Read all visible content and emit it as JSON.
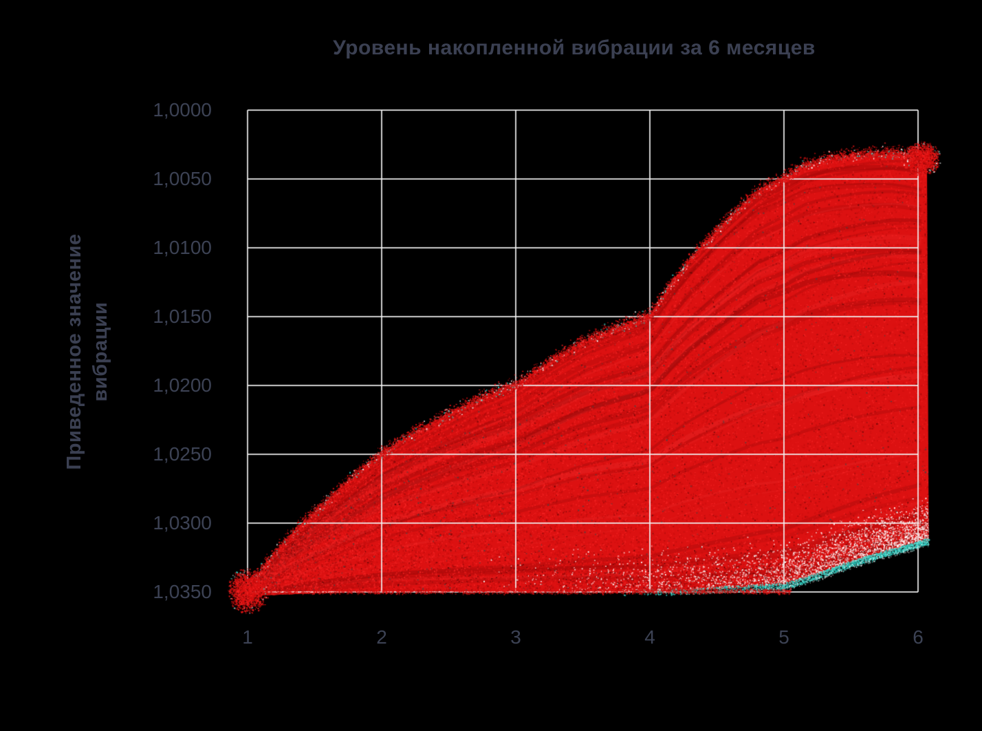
{
  "page": {
    "background": "#000000"
  },
  "title": {
    "text": "Уровень накопленной вибрации за 6 месяцев"
  },
  "y_axis": {
    "title_lines": [
      "Приведенное значение",
      "вибрации"
    ],
    "tick_labels": [
      "1,0000",
      "1,0050",
      "1,0100",
      "1,0150",
      "1,0200",
      "1,0250",
      "1,0300",
      "1,0350"
    ],
    "tick_values": [
      1.0,
      1.005,
      1.01,
      1.015,
      1.02,
      1.025,
      1.03,
      1.035
    ],
    "min": 1.0,
    "max": 1.035,
    "inverted": true
  },
  "x_axis": {
    "tick_labels": [
      "1",
      "2",
      "3",
      "4",
      "5",
      "6"
    ],
    "tick_values": [
      1,
      2,
      3,
      4,
      5,
      6
    ],
    "min": 1,
    "max": 6
  },
  "chart_data": {
    "type": "scatter",
    "subtype": "monte-carlo-fan",
    "title": "Уровень накопленной вибрации за 6 месяцев",
    "xlabel": "",
    "ylabel": "Приведенное значение вибрации",
    "x_range": [
      1,
      6
    ],
    "y_range": [
      1.0,
      1.035
    ],
    "y_axis_inverted": true,
    "grid": true,
    "legend_position": "none",
    "x": [
      1,
      2,
      3,
      4,
      5,
      6
    ],
    "upper_edge_values": [
      1.035,
      1.025,
      1.02,
      1.015,
      1.005,
      1.0034
    ],
    "lower_edge_values": [
      1.035,
      1.035,
      1.035,
      1.035,
      1.0345,
      1.0315
    ],
    "start_point": [
      1,
      1.035
    ],
    "end_point": [
      6,
      1.0035
    ],
    "envelope_top": [
      [
        1,
        1.0349
      ],
      [
        1.1,
        1.0335
      ],
      [
        1.25,
        1.0317
      ],
      [
        1.4,
        1.0302
      ],
      [
        1.6,
        1.0284
      ],
      [
        1.8,
        1.0266
      ],
      [
        2,
        1.025
      ],
      [
        2.25,
        1.0235
      ],
      [
        2.5,
        1.0222
      ],
      [
        2.75,
        1.021
      ],
      [
        3,
        1.02
      ],
      [
        3.25,
        1.0184
      ],
      [
        3.5,
        1.0169
      ],
      [
        3.75,
        1.0159
      ],
      [
        4,
        1.015
      ],
      [
        4.15,
        1.0128
      ],
      [
        4.3,
        1.0109
      ],
      [
        4.55,
        1.0083
      ],
      [
        4.8,
        1.006
      ],
      [
        5,
        1.005
      ],
      [
        5.15,
        1.0041
      ],
      [
        5.35,
        1.0036
      ],
      [
        5.6,
        1.0033
      ],
      [
        5.8,
        1.0032
      ],
      [
        6,
        1.0034
      ],
      [
        6.08,
        1.0038
      ]
    ],
    "envelope_bottom": [
      [
        1,
        1.0353
      ],
      [
        1.5,
        1.0351
      ],
      [
        2,
        1.035
      ],
      [
        2.5,
        1.035
      ],
      [
        3,
        1.035
      ],
      [
        3.5,
        1.035
      ],
      [
        3.9,
        1.035
      ],
      [
        4.3,
        1.0349
      ],
      [
        4.7,
        1.0347
      ],
      [
        5,
        1.0345
      ],
      [
        5.15,
        1.0341
      ],
      [
        5.3,
        1.0336
      ],
      [
        5.5,
        1.0329
      ],
      [
        5.7,
        1.0323
      ],
      [
        5.85,
        1.0319
      ],
      [
        6,
        1.0315
      ],
      [
        6.06,
        1.0313
      ]
    ],
    "colors": {
      "cloud": "#dc1111",
      "cloud_bright": "#f32222",
      "cloud_mid": "#c30d0d",
      "cloud_dark": "#a50b0b",
      "cloud_deep": "#6f0707",
      "speck_gray": "#444444",
      "accent_white": "#ffffff",
      "accent_cyan": "#35d1c5",
      "accent_cyan_light": "#67e8dc",
      "accent_cyan_dark": "#17a79d",
      "grid": "#f2f2f2",
      "text": "#3b4052"
    }
  }
}
